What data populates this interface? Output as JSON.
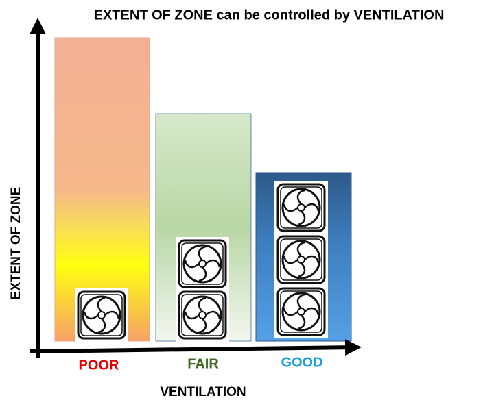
{
  "header": {
    "title": "EXTENT OF ZONE can be controlled by VENTILATION"
  },
  "axes": {
    "y_label": "EXTENT OF ZONE",
    "x_label": "VENTILATION"
  },
  "categories": [
    "POOR",
    "FAIR",
    "GOOD"
  ]
}
